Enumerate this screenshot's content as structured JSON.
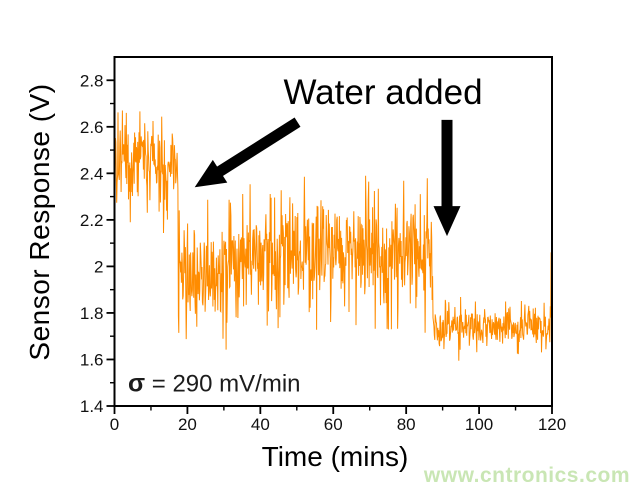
{
  "watermark": {
    "text": "www.cntronics.com",
    "color": "#c9e6b4"
  },
  "chart_data": {
    "type": "line",
    "title": "",
    "xlabel": "Time (mins)",
    "ylabel": "Sensor Response (V)",
    "xlim": [
      0,
      120
    ],
    "ylim": [
      1.4,
      2.9
    ],
    "grid": false,
    "legend": "none",
    "frame": "full-box",
    "line_color": "#FF8C00",
    "axis_color": "#000000",
    "x_major_ticks": [
      {
        "v": 0,
        "label": "0"
      },
      {
        "v": 20,
        "label": "20"
      },
      {
        "v": 40,
        "label": "40"
      },
      {
        "v": 60,
        "label": "60"
      },
      {
        "v": 80,
        "label": "80"
      },
      {
        "v": 100,
        "label": "100"
      },
      {
        "v": 120,
        "label": "120"
      }
    ],
    "x_minor_ticks": [
      10,
      30,
      50,
      70,
      90,
      110
    ],
    "y_major_ticks": [
      {
        "v": 2.8,
        "label": "2.8"
      },
      {
        "v": 2.6,
        "label": "2.6"
      },
      {
        "v": 2.4,
        "label": "2.4"
      },
      {
        "v": 2.2,
        "label": "2.2"
      },
      {
        "v": 2.0,
        "label": "2"
      },
      {
        "v": 1.8,
        "label": "1.8"
      },
      {
        "v": 1.6,
        "label": "1.6"
      },
      {
        "v": 1.4,
        "label": "1.4"
      }
    ],
    "y_minor_ticks": [
      1.5,
      1.7,
      1.9,
      2.1,
      2.3,
      2.5,
      2.7
    ],
    "series": {
      "name": "sensor-response-trace",
      "description": "Noisy sensor response vs time; baseline ~2.44 V drops to ~2.0 V after water added at ~17.5 min, drops again to ~1.75 V after water added at ~87 min",
      "segments": [
        {
          "t_start": 0,
          "t_end": 17.5,
          "mean": 2.44,
          "noise_amp": 0.3
        },
        {
          "t_start": 17.5,
          "t_end": 30,
          "mean": 1.96,
          "noise_amp": 0.34
        },
        {
          "t_start": 30,
          "t_end": 87.3,
          "mean": 2.06,
          "noise_amp": 0.37
        },
        {
          "t_start": 87.3,
          "t_end": 120,
          "mean": 1.74,
          "noise_amp": 0.14
        }
      ],
      "end_spike_v": 2.06,
      "end_value_v": 1.63
    },
    "annotations": {
      "water_added": {
        "label": "Water added"
      },
      "arrow_left": {
        "from_t": 50.2,
        "from_v": 2.62,
        "to_t": 22.0,
        "to_v": 2.34
      },
      "arrow_down": {
        "from_t": 91.2,
        "from_v": 2.63,
        "to_t": 91.2,
        "to_v": 2.13
      },
      "sigma": {
        "bold_part": "σ",
        "rest": " = 290 mV/min"
      }
    }
  }
}
